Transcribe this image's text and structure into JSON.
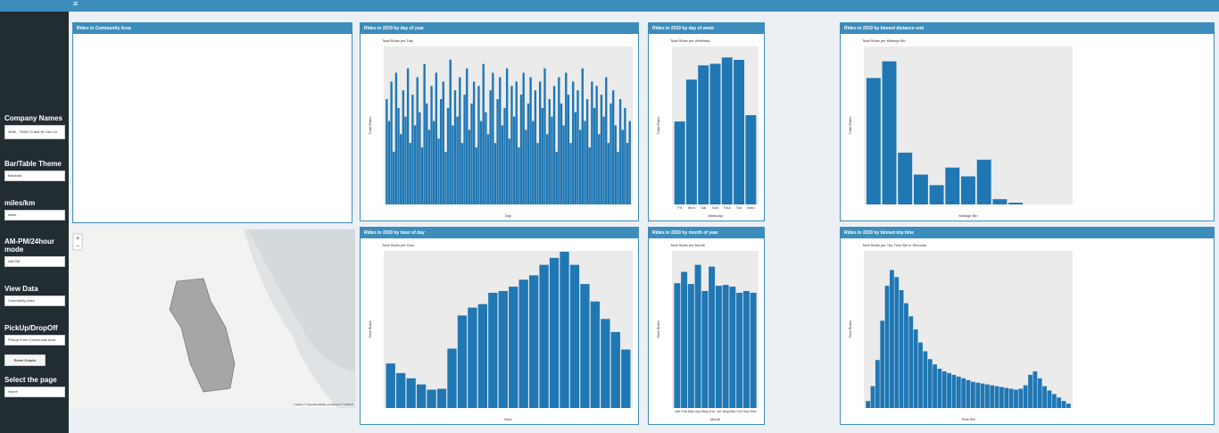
{
  "sidebar": {
    "controls": [
      {
        "label": "Company Names",
        "value": "3556 - 75452 N and W Cab Co"
      },
      {
        "label": "Bar/Table Theme",
        "value": "Barchart"
      },
      {
        "label": "miles/km",
        "value": "miles"
      },
      {
        "label": "AM-PM/24hour mode",
        "value": "AM-PM"
      },
      {
        "label": "View Data",
        "value": "Community Area"
      },
      {
        "label": "PickUp/DropOff",
        "value": "Pickup From Community Area"
      }
    ],
    "button": "Reset Graphs",
    "page_select": {
      "label": "Select the page",
      "value": "Home"
    }
  },
  "map_panel": {
    "title": "Rides in Community Area",
    "attribution": "Leaflet | © OpenStreetMap contributors © CARTO"
  },
  "panels": [
    {
      "title": "Rides in 2019 by day of year",
      "chart": {
        "type": "bar",
        "subtitle": "Total Rides per Day",
        "xlabel": "Day",
        "ylabel": "Total Rides",
        "color": "#1f77b4",
        "ylim": [
          0,
          180
        ],
        "values": [
          120,
          95,
          140,
          60,
          150,
          110,
          80,
          130,
          100,
          155,
          70,
          125,
          90,
          145,
          105,
          65,
          160,
          115,
          85,
          135,
          95,
          150,
          75,
          120,
          140,
          60,
          110,
          165,
          90,
          130,
          100,
          145,
          70,
          125,
          155,
          85,
          115,
          140,
          65,
          135,
          95,
          160,
          105,
          80,
          130,
          150,
          70,
          120,
          145,
          90,
          110,
          155,
          75,
          135,
          100,
          140,
          65,
          125,
          150,
          85,
          115,
          145,
          95,
          130,
          70,
          140,
          110,
          155,
          80,
          120,
          100,
          135,
          60,
          145,
          115,
          90,
          150,
          125,
          70,
          140,
          105,
          130,
          85,
          155,
          95,
          120,
          65,
          140,
          110,
          135,
          80,
          125,
          100,
          145,
          70,
          115,
          130,
          90,
          60,
          120,
          85,
          110,
          70,
          95
        ]
      }
    },
    {
      "title": "Rides in 2019 by day of week",
      "chart": {
        "type": "bar",
        "subtitle": "Total Rides per Weekday",
        "xlabel": "Weekday",
        "ylabel": "Total Rides",
        "color": "#1f77b4",
        "ylim": [
          0,
          200
        ],
        "categories": [
          "Fri",
          "Mon",
          "Sat",
          "Sun",
          "Thur",
          "Tue",
          "Wed"
        ],
        "values": [
          105,
          158,
          176,
          178,
          186,
          183,
          113
        ]
      }
    },
    {
      "title": "Rides in 2019 by binned distance unit",
      "chart": {
        "type": "bar",
        "subtitle": "Total Rides per Mileage Bin",
        "xlabel": "Mileage Bin",
        "ylabel": "Total Rides",
        "color": "#1f77b4",
        "ylim": [
          0,
          180
        ],
        "values": [
          144,
          163,
          59,
          34,
          22,
          42,
          32,
          51,
          6,
          2,
          0,
          0,
          0
        ]
      }
    },
    {
      "title": "Rides in 2019 by hour of day",
      "chart": {
        "type": "bar",
        "subtitle": "Total Rides per Hour",
        "xlabel": "Hour",
        "ylabel": "Total Rides",
        "color": "#1f77b4",
        "ylim": [
          0,
          180
        ],
        "values": [
          51,
          40,
          34,
          27,
          21,
          22,
          68,
          106,
          115,
          119,
          132,
          134,
          139,
          147,
          152,
          164,
          172,
          179,
          164,
          142,
          122,
          102,
          87,
          67
        ]
      }
    },
    {
      "title": "Rides in 2019 by month of year",
      "chart": {
        "type": "bar",
        "subtitle": "Total Rides per Month",
        "xlabel": "Month",
        "ylabel": "Total Rides",
        "color": "#1f77b4",
        "ylim": [
          0,
          180
        ],
        "categories": [
          "Jan",
          "Feb",
          "Mar",
          "Apr",
          "May",
          "Jun",
          "Jul",
          "Aug",
          "Sep",
          "Oct",
          "Nov",
          "Dec"
        ],
        "values": [
          143,
          156,
          142,
          164,
          134,
          162,
          140,
          141,
          139,
          132,
          134,
          132
        ]
      }
    },
    {
      "title": "Rides in 2019 by binned trip time",
      "chart": {
        "type": "bar",
        "subtitle": "Total Rides per Trip Time Bin in Seconds",
        "xlabel": "Time Bin",
        "ylabel": "Total Rides",
        "color": "#1f77b4",
        "ylim": [
          0,
          180
        ],
        "values": [
          8,
          25,
          55,
          100,
          140,
          158,
          150,
          135,
          120,
          105,
          90,
          75,
          65,
          56,
          50,
          45,
          42,
          40,
          38,
          36,
          34,
          32,
          30,
          29,
          28,
          27,
          26,
          25,
          24,
          23,
          22,
          21,
          22,
          26,
          38,
          42,
          34,
          25,
          20,
          16,
          12,
          8,
          5
        ]
      }
    }
  ]
}
